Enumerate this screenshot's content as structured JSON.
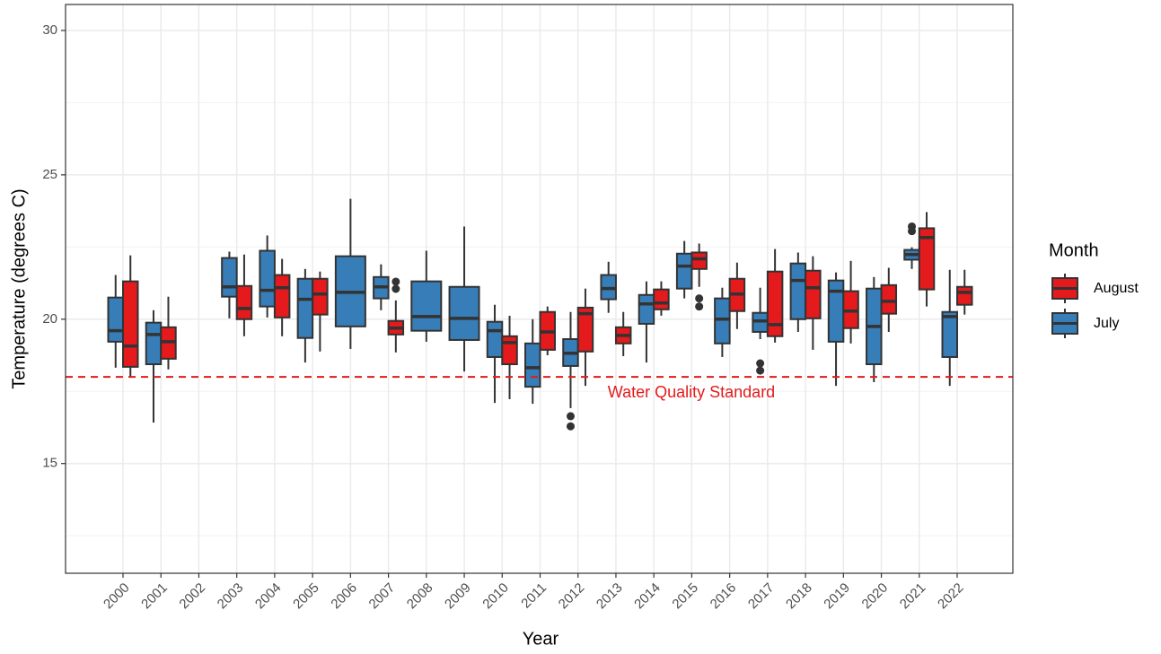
{
  "chart_data": {
    "type": "boxplot",
    "x_label": "Year",
    "y_label": "Temperature (degrees C)",
    "legend_title": "Month",
    "categories": [
      "2000",
      "2001",
      "2002",
      "2003",
      "2004",
      "2005",
      "2006",
      "2007",
      "2008",
      "2009",
      "2010",
      "2011",
      "2012",
      "2013",
      "2014",
      "2015",
      "2016",
      "2017",
      "2018",
      "2019",
      "2020",
      "2021",
      "2022"
    ],
    "ylim": [
      11.2,
      30.9
    ],
    "yticks": [
      15,
      20,
      25,
      30
    ],
    "y_minor_grid": [
      12.5,
      17.5,
      22.5,
      27.5
    ],
    "grid": true,
    "hline": {
      "value": 18,
      "label": "Water Quality Standard",
      "color": "#e41a1c"
    },
    "series": [
      {
        "name": "July",
        "color": "#377eb8",
        "low": [
          18.32,
          16.42,
          null,
          20.03,
          20.06,
          18.5,
          18.97,
          20.31,
          19.22,
          18.19,
          17.1,
          17.07,
          16.92,
          20.22,
          18.5,
          20.72,
          18.69,
          19.31,
          19.56,
          17.69,
          17.82,
          21.74,
          17.69
        ],
        "q1": [
          19.22,
          18.44,
          null,
          20.78,
          20.44,
          19.35,
          19.75,
          20.72,
          19.6,
          19.28,
          18.69,
          17.66,
          18.38,
          20.69,
          19.84,
          21.06,
          19.16,
          19.56,
          20.0,
          19.22,
          18.44,
          22.06,
          18.69
        ],
        "median": [
          19.6,
          19.47,
          null,
          21.12,
          21.0,
          20.69,
          20.93,
          21.12,
          20.09,
          20.03,
          19.6,
          18.32,
          18.82,
          21.06,
          20.53,
          21.84,
          20.0,
          19.94,
          21.34,
          20.97,
          19.75,
          22.24,
          20.09
        ],
        "q3": [
          20.75,
          19.88,
          null,
          22.12,
          22.37,
          21.4,
          22.18,
          21.46,
          21.31,
          21.12,
          19.91,
          19.16,
          19.31,
          21.53,
          20.84,
          22.27,
          20.72,
          20.22,
          21.93,
          21.34,
          21.06,
          22.4,
          20.25
        ],
        "high": [
          21.53,
          20.31,
          null,
          22.34,
          22.9,
          21.74,
          24.17,
          21.9,
          22.37,
          23.21,
          20.5,
          20.0,
          20.25,
          21.99,
          21.31,
          22.71,
          21.09,
          21.09,
          22.31,
          21.62,
          21.46,
          22.49,
          21.71
        ],
        "outliers": [
          [],
          [],
          [],
          [],
          [],
          [],
          [],
          [],
          [],
          [],
          [],
          [],
          [
            16.64,
            16.29
          ],
          [],
          [],
          [],
          [],
          [
            18.47,
            18.22
          ],
          [],
          [],
          [],
          [
            23.21,
            23.05
          ],
          []
        ]
      },
      {
        "name": "August",
        "color": "#e41a1c",
        "low": [
          17.98,
          18.26,
          null,
          19.41,
          19.41,
          18.88,
          null,
          18.85,
          null,
          null,
          17.23,
          18.75,
          17.69,
          18.72,
          20.12,
          21.12,
          19.66,
          19.19,
          18.94,
          19.16,
          19.56,
          20.44,
          20.16
        ],
        "q1": [
          18.35,
          18.63,
          null,
          20.0,
          20.06,
          20.16,
          null,
          19.47,
          null,
          null,
          18.44,
          18.94,
          18.88,
          19.16,
          20.34,
          21.74,
          20.28,
          19.41,
          20.03,
          19.69,
          20.19,
          21.03,
          20.5
        ],
        "median": [
          19.07,
          19.22,
          null,
          20.37,
          21.09,
          20.87,
          null,
          19.69,
          null,
          null,
          19.19,
          19.56,
          20.19,
          19.44,
          20.56,
          22.09,
          20.87,
          19.81,
          21.09,
          20.28,
          20.62,
          22.83,
          20.93
        ],
        "q3": [
          21.31,
          19.72,
          null,
          21.15,
          21.53,
          21.4,
          null,
          19.94,
          null,
          null,
          19.41,
          20.25,
          20.4,
          19.72,
          21.03,
          22.31,
          21.4,
          21.65,
          21.68,
          20.97,
          21.18,
          23.15,
          21.12
        ],
        "high": [
          22.21,
          20.78,
          null,
          22.24,
          22.09,
          21.65,
          null,
          20.65,
          null,
          null,
          20.12,
          20.44,
          21.06,
          20.25,
          21.31,
          22.62,
          21.96,
          22.43,
          22.18,
          22.02,
          21.78,
          23.71,
          21.71
        ],
        "outliers": [
          [],
          [],
          [],
          [],
          [],
          [],
          [],
          [
            21.3,
            21.05
          ],
          [],
          [],
          [],
          [],
          [],
          [],
          [],
          [
            20.72,
            20.44
          ],
          [],
          [],
          [],
          [],
          [],
          [],
          []
        ]
      }
    ]
  }
}
